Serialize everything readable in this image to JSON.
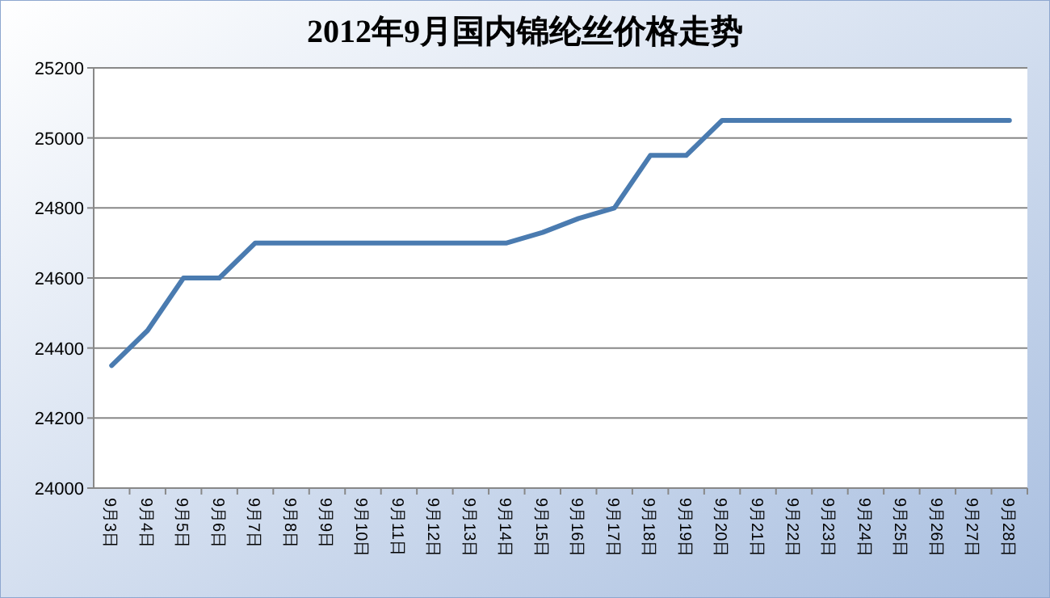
{
  "chart_data": {
    "type": "line",
    "title": "2012年9月国内锦纶丝价格走势",
    "categories": [
      "9月3日",
      "9月4日",
      "9月5日",
      "9月6日",
      "9月7日",
      "9月8日",
      "9月9日",
      "9月10日",
      "9月11日",
      "9月12日",
      "9月13日",
      "9月14日",
      "9月15日",
      "9月16日",
      "9月17日",
      "9月18日",
      "9月19日",
      "9月20日",
      "9月21日",
      "9月22日",
      "9月23日",
      "9月24日",
      "9月25日",
      "9月26日",
      "9月27日",
      "9月28日"
    ],
    "series": [
      {
        "color": "#4a7bb0",
        "values": [
          24350,
          24450,
          24600,
          24600,
          24700,
          24700,
          24700,
          24700,
          24700,
          24700,
          24700,
          24700,
          24730,
          24770,
          24800,
          24950,
          24950,
          25050,
          25050,
          25050,
          25050,
          25050,
          25050,
          25050,
          25050,
          25050
        ]
      }
    ],
    "ylim": [
      24000,
      25200
    ],
    "yticks": [
      24000,
      24200,
      24400,
      24600,
      24800,
      25000,
      25200
    ],
    "grid": "y",
    "marker": "none",
    "line_style": "solid"
  }
}
